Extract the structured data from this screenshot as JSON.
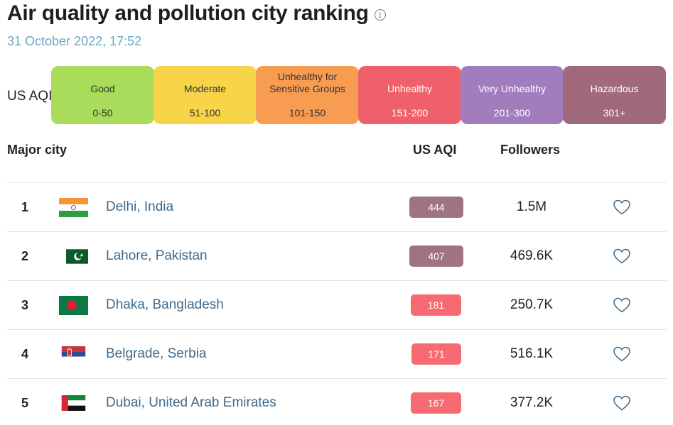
{
  "header": {
    "title": "Air quality and pollution city ranking",
    "info_icon": "info-icon",
    "timestamp": "31 October 2022, 17:52"
  },
  "legend": {
    "label": "US AQI",
    "bands": [
      {
        "name": "Good",
        "range": "0-50",
        "color": "#a8dc5a"
      },
      {
        "name": "Moderate",
        "range": "51-100",
        "color": "#f8d548"
      },
      {
        "name": "Unhealthy for Sensitive Groups",
        "range": "101-150",
        "color": "#f89c52"
      },
      {
        "name": "Unhealthy",
        "range": "151-200",
        "color": "#f0606a"
      },
      {
        "name": "Very Unhealthy",
        "range": "201-300",
        "color": "#a27dbd"
      },
      {
        "name": "Hazardous",
        "range": "301+",
        "color": "#a06a7c"
      }
    ]
  },
  "table": {
    "headers": {
      "city": "Major city",
      "aqi": "US AQI",
      "followers": "Followers"
    },
    "rows": [
      {
        "rank": "1",
        "city": "Delhi, India",
        "aqi": "444",
        "aqi_color": "#a07383",
        "followers": "1.5M",
        "flag": "india-flag-icon"
      },
      {
        "rank": "2",
        "city": "Lahore, Pakistan",
        "aqi": "407",
        "aqi_color": "#a07383",
        "followers": "469.6K",
        "flag": "pakistan-flag-icon"
      },
      {
        "rank": "3",
        "city": "Dhaka, Bangladesh",
        "aqi": "181",
        "aqi_color": "#f76a72",
        "followers": "250.7K",
        "flag": "bangladesh-flag-icon"
      },
      {
        "rank": "4",
        "city": "Belgrade, Serbia",
        "aqi": "171",
        "aqi_color": "#f76a72",
        "followers": "516.1K",
        "flag": "serbia-flag-icon"
      },
      {
        "rank": "5",
        "city": "Dubai, United Arab Emirates",
        "aqi": "167",
        "aqi_color": "#f76a72",
        "followers": "377.2K",
        "flag": "uae-flag-icon"
      }
    ]
  }
}
